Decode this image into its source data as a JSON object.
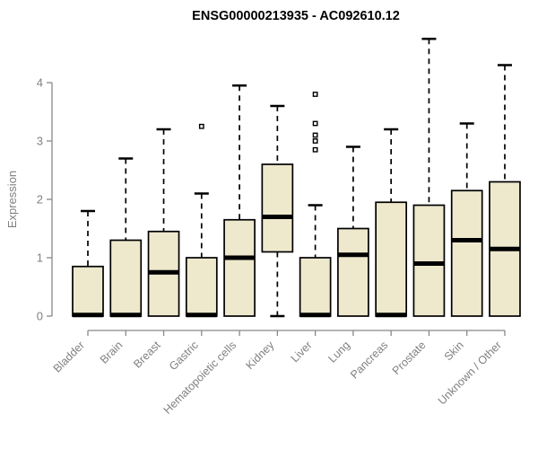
{
  "chart_data": {
    "type": "box",
    "title": "ENSG00000213935 - AC092610.12",
    "ylabel": "Expression",
    "xlabel": "",
    "ylim": [
      0,
      4.8
    ],
    "yticks": [
      0,
      1,
      2,
      3,
      4
    ],
    "grid": false,
    "legend": null,
    "axis_color": "#888888",
    "label_color": "#808080",
    "title_color": "#000000",
    "box_fill": "#EEE8CD",
    "box_stroke": "#000000",
    "categories": [
      "Bladder",
      "Brain",
      "Breast",
      "Gastric",
      "Hematopoietic cells",
      "Kidney",
      "Liver",
      "Lung",
      "Pancreas",
      "Prostate",
      "Skin",
      "Unknown / Other"
    ],
    "series": [
      {
        "name": "Bladder",
        "low": 0,
        "q1": 0,
        "median": 0.02,
        "q3": 0.85,
        "high": 1.8,
        "outliers": []
      },
      {
        "name": "Brain",
        "low": 0,
        "q1": 0,
        "median": 0.02,
        "q3": 1.3,
        "high": 2.7,
        "outliers": []
      },
      {
        "name": "Breast",
        "low": 0,
        "q1": 0,
        "median": 0.75,
        "q3": 1.45,
        "high": 3.2,
        "outliers": []
      },
      {
        "name": "Gastric",
        "low": 0,
        "q1": 0,
        "median": 0.02,
        "q3": 1.0,
        "high": 2.1,
        "outliers": [
          3.25
        ]
      },
      {
        "name": "Hematopoietic cells",
        "low": 0,
        "q1": 0,
        "median": 1.0,
        "q3": 1.65,
        "high": 3.95,
        "outliers": []
      },
      {
        "name": "Kidney",
        "low": 0,
        "q1": 1.1,
        "median": 1.7,
        "q3": 2.6,
        "high": 3.6,
        "outliers": []
      },
      {
        "name": "Liver",
        "low": 0,
        "q1": 0,
        "median": 0.02,
        "q3": 1.0,
        "high": 1.9,
        "outliers": [
          2.85,
          3.0,
          3.1,
          3.3,
          3.8
        ]
      },
      {
        "name": "Lung",
        "low": 0,
        "q1": 0,
        "median": 1.05,
        "q3": 1.5,
        "high": 2.9,
        "outliers": []
      },
      {
        "name": "Pancreas",
        "low": 0,
        "q1": 0,
        "median": 0.02,
        "q3": 1.95,
        "high": 3.2,
        "outliers": []
      },
      {
        "name": "Prostate",
        "low": 0,
        "q1": 0,
        "median": 0.9,
        "q3": 1.9,
        "high": 4.75,
        "outliers": []
      },
      {
        "name": "Skin",
        "low": 0,
        "q1": 0,
        "median": 1.3,
        "q3": 2.15,
        "high": 3.3,
        "outliers": []
      },
      {
        "name": "Unknown / Other",
        "low": 0,
        "q1": 0,
        "median": 1.15,
        "q3": 2.3,
        "high": 4.3,
        "outliers": []
      }
    ]
  }
}
